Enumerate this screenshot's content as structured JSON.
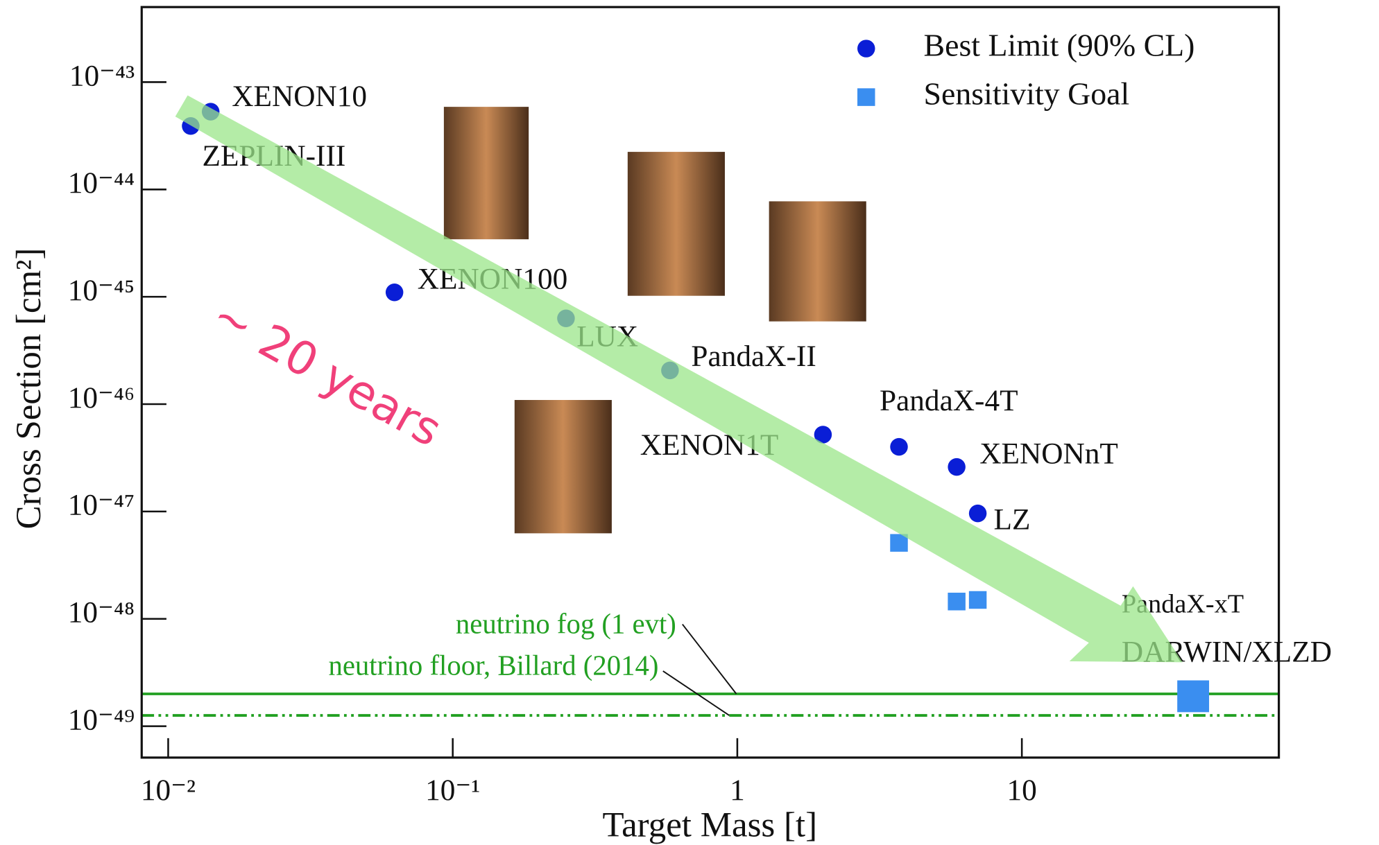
{
  "chart_data": {
    "type": "scatter",
    "xlabel": "Target Mass [t]",
    "ylabel": "Cross Section [cm²]",
    "xscale": "log",
    "yscale": "log",
    "xlim": [
      0.00807,
      80
    ],
    "ylim": [
      5e-43,
      5.1e-50
    ],
    "xticks": [
      {
        "value": 0.01,
        "label": "10⁻²"
      },
      {
        "value": 0.1,
        "label": "10⁻¹"
      },
      1,
      10
    ],
    "yticks": [
      {
        "value": 1e-43,
        "label": "10⁻⁴³"
      },
      {
        "value": 1e-44,
        "label": "10⁻⁴⁴"
      },
      {
        "value": 1e-45,
        "label": "10⁻⁴⁵"
      },
      {
        "value": 1e-46,
        "label": "10⁻⁴⁶"
      },
      {
        "value": 1e-47,
        "label": "10⁻⁴⁷"
      },
      {
        "value": 1e-48,
        "label": "10⁻⁴⁸"
      },
      {
        "value": 1e-49,
        "label": "10⁻⁴⁹"
      }
    ],
    "legend": "upper right",
    "series": [
      {
        "name": "Best Limit (90% CL)",
        "color": "#0a1ed6",
        "marker": "circle",
        "x": [
          0.012,
          0.0141,
          0.0624,
          0.25,
          0.58,
          2.0,
          3.7,
          5.9,
          7.0
        ],
        "values": [
          3.9e-44,
          5.3e-44,
          1.1e-45,
          6.3e-46,
          2.06e-46,
          5.2e-47,
          4e-47,
          2.6e-47,
          9.6e-48
        ],
        "labels": [
          "ZEPLIN-III",
          "XENON10",
          "XENON100",
          "LUX",
          "PandaX-II",
          "XENON1T",
          "PandaX-4T",
          "XENONnT",
          "LZ"
        ]
      },
      {
        "name": "Sensitivity Goal",
        "color": "#3a8ef0",
        "marker": "square",
        "x": [
          3.7,
          5.9,
          7.0,
          40
        ],
        "values": [
          5.1e-48,
          1.45e-48,
          1.5e-48,
          1.9e-49
        ]
      }
    ],
    "lines": [
      {
        "name": "neutrino fog (1 evt)",
        "value": 2e-49,
        "color": "#22a022",
        "style": "solid"
      },
      {
        "name": "neutrino floor, Billard (2014)",
        "value": 1.26e-49,
        "color": "#22a022",
        "style": "dashdot"
      }
    ],
    "annotations": [
      "PandaX-xT",
      "DARWIN/XLZD",
      "~ 20 years"
    ]
  }
}
